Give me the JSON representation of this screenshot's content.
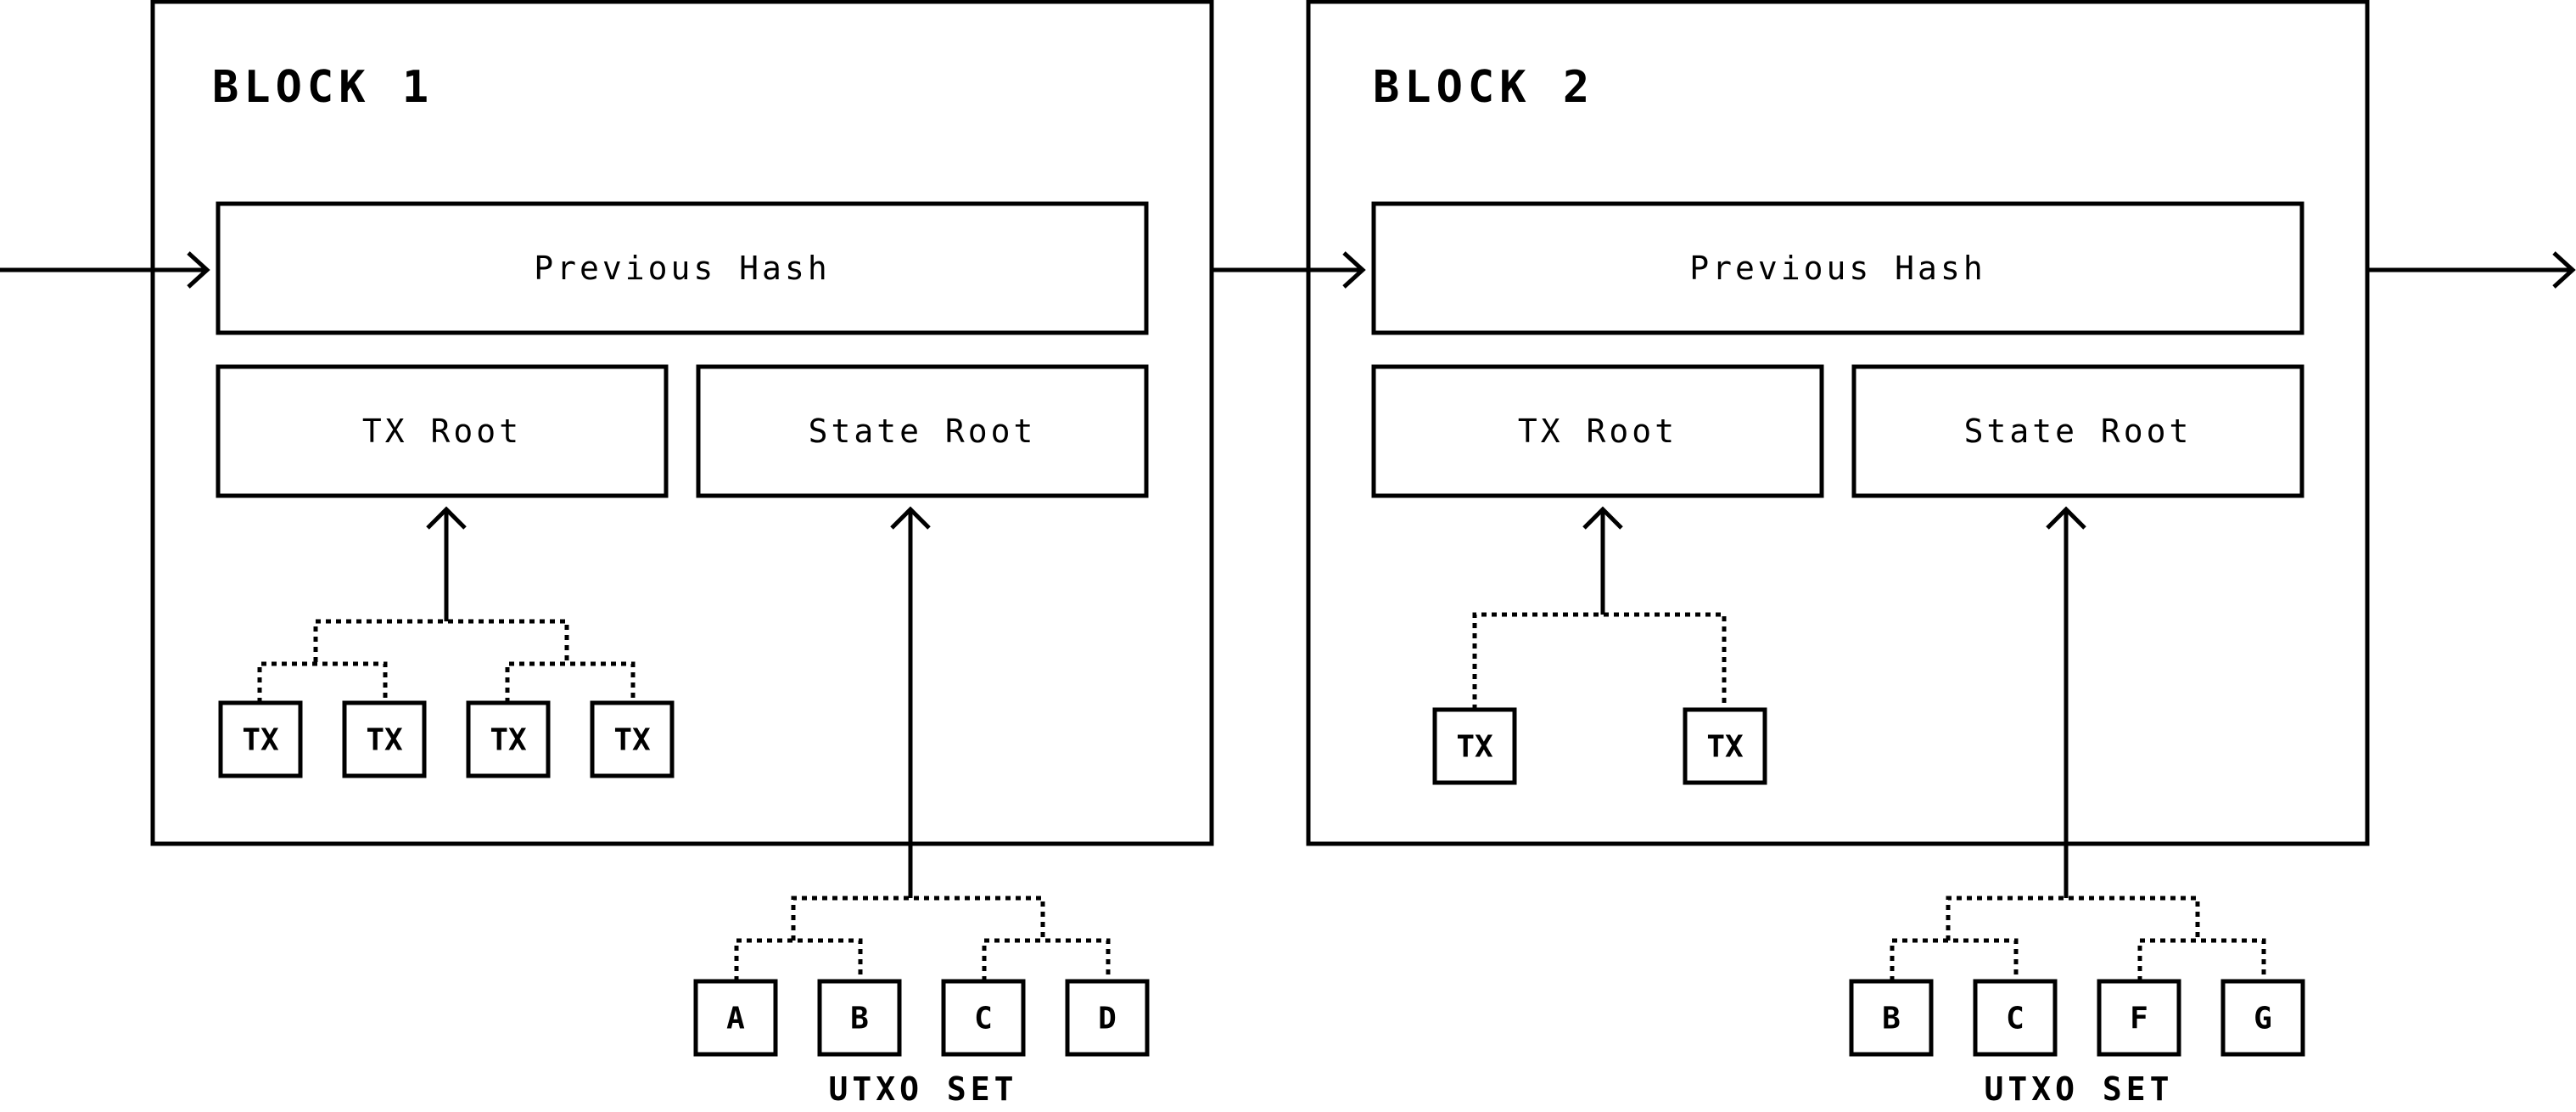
{
  "blocks": [
    {
      "title": "BLOCK 1",
      "previous_hash": "Previous Hash",
      "tx_root": "TX Root",
      "state_root": "State Root",
      "transactions": [
        "TX",
        "TX",
        "TX",
        "TX"
      ],
      "utxo_set": [
        "A",
        "B",
        "C",
        "D"
      ],
      "utxo_caption": "UTXO SET"
    },
    {
      "title": "BLOCK 2",
      "previous_hash": "Previous Hash",
      "tx_root": "TX Root",
      "state_root": "State Root",
      "transactions": [
        "TX",
        "TX"
      ],
      "utxo_set": [
        "B",
        "C",
        "F",
        "G"
      ],
      "utxo_caption": "UTXO SET"
    }
  ]
}
